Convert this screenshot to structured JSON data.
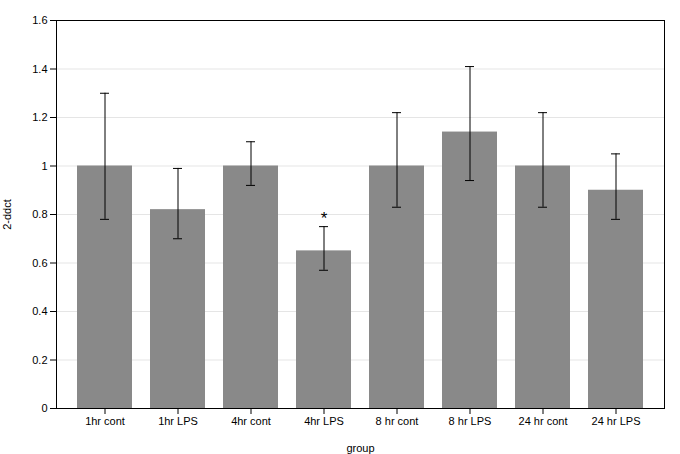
{
  "chart_data": {
    "type": "bar",
    "categories": [
      "1hr cont",
      "1hr LPS",
      "4hr cont",
      "4hr LPS",
      "8 hr cont",
      "8 hr LPS",
      "24 hr cont",
      "24 hr LPS"
    ],
    "values": [
      1.0,
      0.82,
      1.0,
      0.65,
      1.0,
      1.14,
      1.0,
      0.9
    ],
    "error_up": [
      0.3,
      0.17,
      0.1,
      0.1,
      0.22,
      0.27,
      0.22,
      0.15
    ],
    "error_down": [
      0.22,
      0.12,
      0.08,
      0.08,
      0.17,
      0.2,
      0.17,
      0.12
    ],
    "color": "#898989",
    "xlabel": "group",
    "ylabel": "2-ddct",
    "ylim": [
      0,
      1.6
    ],
    "yticks": [
      0,
      0.2,
      0.4,
      0.6,
      0.8,
      1,
      1.2,
      1.4,
      1.6
    ],
    "grid": true,
    "annotations": [
      {
        "category": "4hr LPS",
        "text": "*"
      }
    ]
  }
}
